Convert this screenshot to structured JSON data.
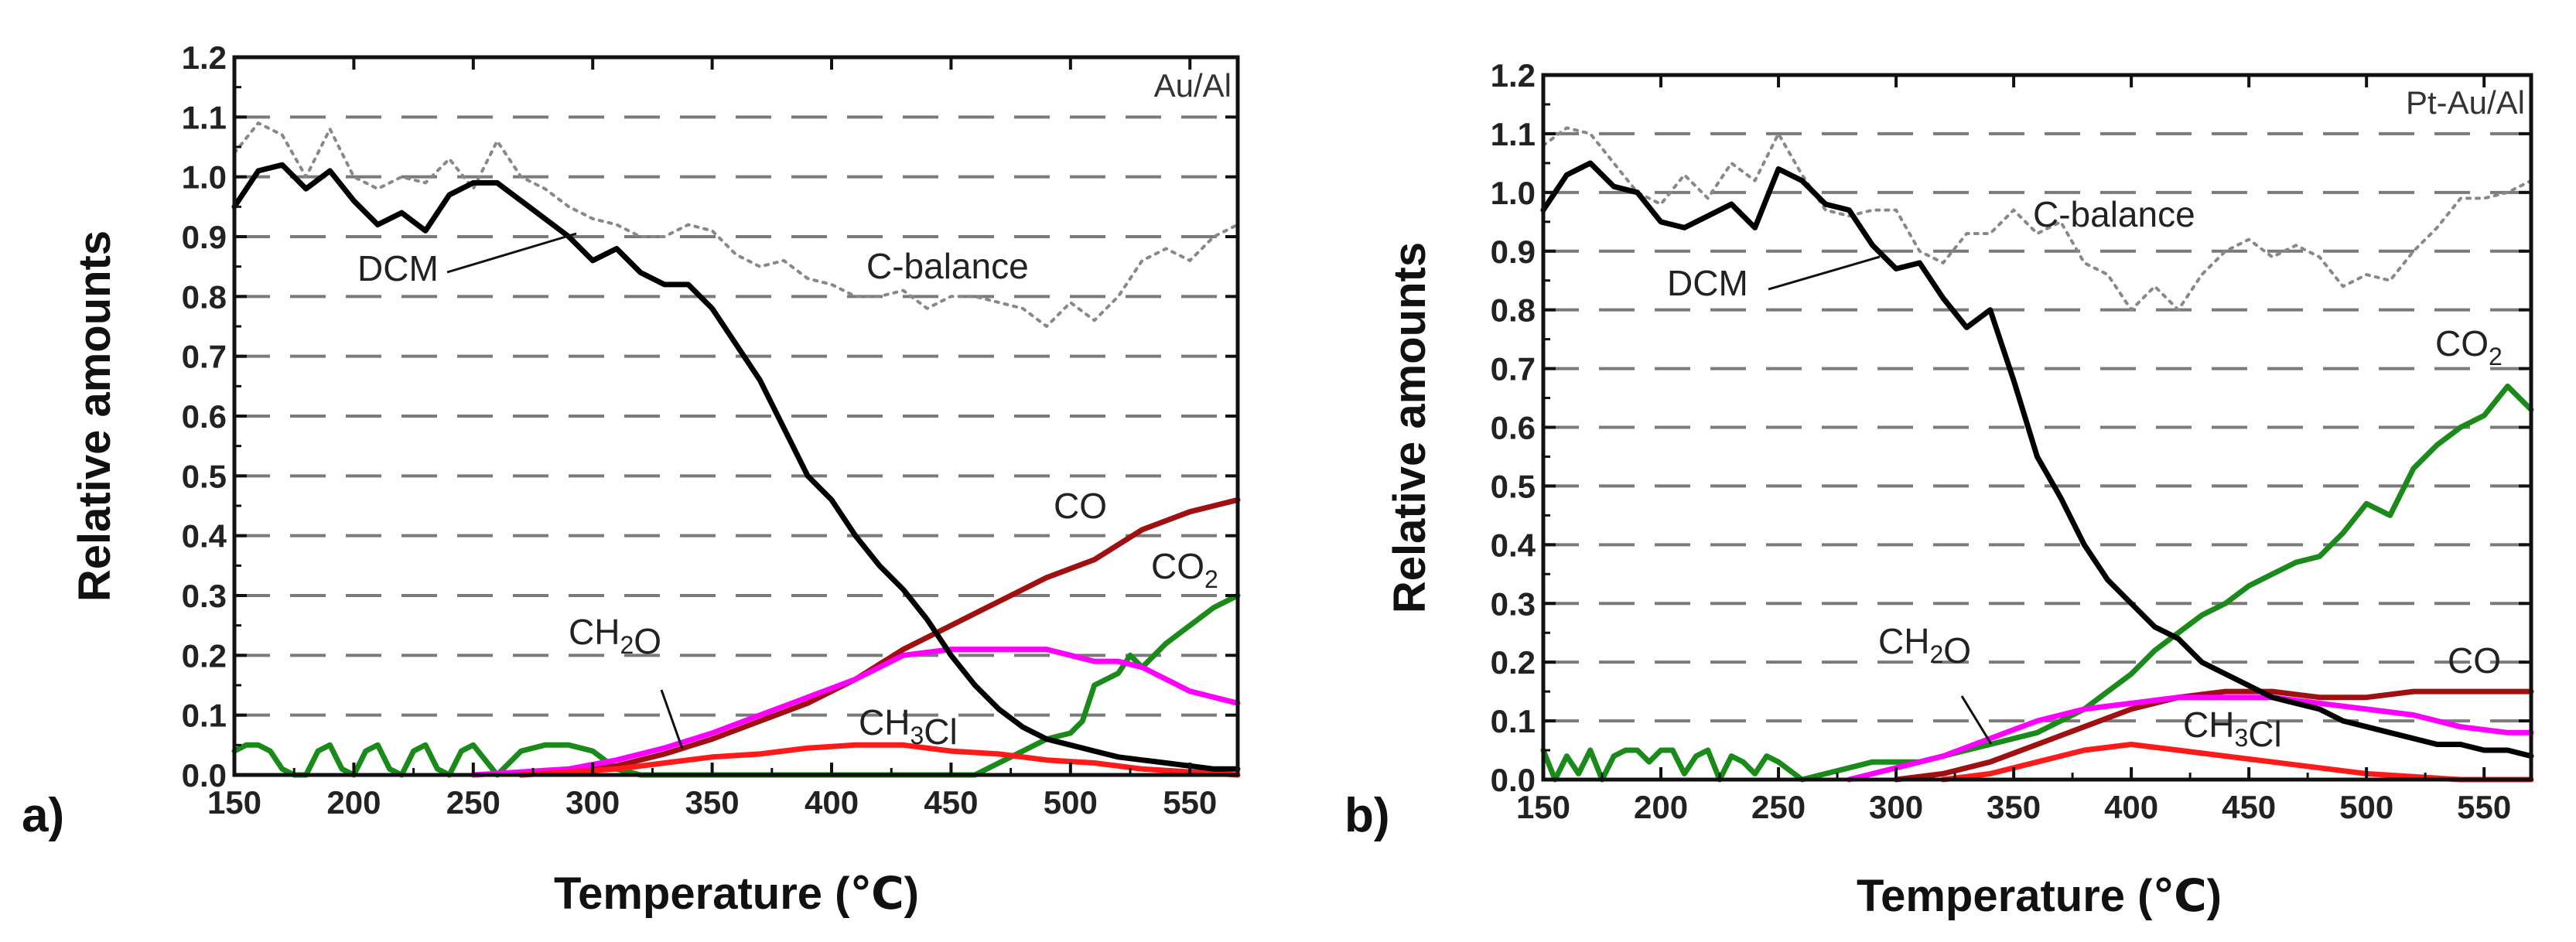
{
  "chart_data": [
    {
      "panel_label": "a)",
      "type": "line",
      "title": "Au/Al",
      "xlabel": "Temperature (℃)",
      "ylabel": "Relative amounts",
      "xlim": [
        150,
        570
      ],
      "ylim": [
        0,
        1.2
      ],
      "xticks": [
        "150",
        "200",
        "250",
        "300",
        "350",
        "400",
        "450",
        "500",
        "550"
      ],
      "yticks": [
        "0.0",
        "0.1",
        "0.2",
        "0.3",
        "0.4",
        "0.5",
        "0.6",
        "0.7",
        "0.8",
        "0.9",
        "1.0",
        "1.1",
        "1.2"
      ],
      "grid": "horizontal dashed",
      "series": [
        {
          "name": "C-balance",
          "color": "#888888",
          "style": "dotted",
          "x": [
            150,
            160,
            170,
            180,
            190,
            200,
            210,
            220,
            230,
            240,
            250,
            260,
            270,
            280,
            290,
            300,
            310,
            320,
            330,
            340,
            350,
            360,
            370,
            380,
            390,
            400,
            410,
            420,
            430,
            440,
            450,
            460,
            470,
            480,
            490,
            500,
            510,
            520,
            530,
            540,
            550,
            560,
            570
          ],
          "y": [
            1.04,
            1.09,
            1.07,
            1.0,
            1.08,
            1.0,
            0.98,
            1.0,
            0.99,
            1.03,
            0.98,
            1.06,
            1.0,
            0.98,
            0.95,
            0.93,
            0.92,
            0.9,
            0.9,
            0.92,
            0.91,
            0.87,
            0.85,
            0.86,
            0.83,
            0.82,
            0.8,
            0.8,
            0.81,
            0.78,
            0.8,
            0.8,
            0.79,
            0.78,
            0.75,
            0.79,
            0.76,
            0.8,
            0.86,
            0.88,
            0.86,
            0.9,
            0.92
          ]
        },
        {
          "name": "DCM",
          "color": "#000000",
          "style": "solid",
          "x": [
            150,
            160,
            170,
            180,
            190,
            200,
            210,
            220,
            230,
            240,
            250,
            260,
            270,
            280,
            290,
            300,
            310,
            320,
            330,
            340,
            350,
            360,
            370,
            380,
            390,
            400,
            410,
            420,
            430,
            440,
            450,
            460,
            470,
            480,
            490,
            500,
            510,
            520,
            530,
            540,
            550,
            560,
            570
          ],
          "y": [
            0.95,
            1.01,
            1.02,
            0.98,
            1.01,
            0.96,
            0.92,
            0.94,
            0.91,
            0.97,
            0.99,
            0.99,
            0.96,
            0.93,
            0.9,
            0.86,
            0.88,
            0.84,
            0.82,
            0.82,
            0.78,
            0.72,
            0.66,
            0.58,
            0.5,
            0.46,
            0.4,
            0.35,
            0.31,
            0.26,
            0.2,
            0.15,
            0.11,
            0.08,
            0.06,
            0.05,
            0.04,
            0.03,
            0.025,
            0.02,
            0.015,
            0.01,
            0.01
          ]
        },
        {
          "name": "CO",
          "color": "#a01010",
          "style": "solid",
          "x": [
            270,
            290,
            310,
            330,
            350,
            370,
            390,
            410,
            430,
            450,
            470,
            490,
            510,
            530,
            550,
            560,
            570
          ],
          "y": [
            0.0,
            0.005,
            0.015,
            0.035,
            0.06,
            0.09,
            0.12,
            0.16,
            0.21,
            0.25,
            0.29,
            0.33,
            0.36,
            0.41,
            0.44,
            0.45,
            0.46
          ]
        },
        {
          "name": "CO2",
          "color": "#1a8a1a",
          "style": "solid",
          "x": [
            150,
            155,
            160,
            165,
            170,
            175,
            180,
            185,
            190,
            195,
            200,
            205,
            210,
            215,
            220,
            225,
            230,
            235,
            240,
            245,
            250,
            260,
            270,
            280,
            290,
            300,
            310,
            320,
            460,
            470,
            480,
            490,
            500,
            505,
            510,
            520,
            525,
            530,
            540,
            550,
            560,
            570
          ],
          "y": [
            0.04,
            0.05,
            0.05,
            0.04,
            0.01,
            0.0,
            0.0,
            0.04,
            0.05,
            0.01,
            0.0,
            0.04,
            0.05,
            0.01,
            0.0,
            0.04,
            0.05,
            0.01,
            0.0,
            0.04,
            0.05,
            0.0,
            0.04,
            0.05,
            0.05,
            0.04,
            0.01,
            0.0,
            0.0,
            0.02,
            0.04,
            0.06,
            0.07,
            0.09,
            0.15,
            0.17,
            0.2,
            0.18,
            0.22,
            0.25,
            0.28,
            0.3
          ]
        },
        {
          "name": "CH2O",
          "color": "#ff00ff",
          "style": "solid",
          "x": [
            250,
            270,
            290,
            310,
            330,
            350,
            370,
            390,
            410,
            430,
            450,
            470,
            490,
            500,
            510,
            520,
            530,
            540,
            550,
            560,
            570
          ],
          "y": [
            0.0,
            0.005,
            0.01,
            0.025,
            0.045,
            0.07,
            0.1,
            0.13,
            0.16,
            0.2,
            0.21,
            0.21,
            0.21,
            0.2,
            0.19,
            0.19,
            0.18,
            0.16,
            0.14,
            0.13,
            0.12
          ]
        },
        {
          "name": "CH3Cl",
          "color": "#ff1a1a",
          "style": "solid",
          "x": [
            270,
            290,
            310,
            330,
            350,
            370,
            390,
            410,
            430,
            450,
            470,
            490,
            510,
            530,
            550,
            570
          ],
          "y": [
            0.0,
            0.005,
            0.01,
            0.02,
            0.03,
            0.035,
            0.045,
            0.05,
            0.05,
            0.04,
            0.035,
            0.025,
            0.02,
            0.01,
            0.005,
            0.0
          ]
        }
      ],
      "annotations": [
        {
          "text_parts": [
            {
              "t": "C-balance"
            }
          ],
          "color": "#333333"
        },
        {
          "text_parts": [
            {
              "t": "DCM"
            }
          ],
          "color": "#222222"
        },
        {
          "text_parts": [
            {
              "t": "CO"
            }
          ],
          "color": "#222222"
        },
        {
          "text_parts": [
            {
              "t": "CO"
            },
            {
              "t": "2",
              "sub": true
            }
          ],
          "color": "#222222"
        },
        {
          "text_parts": [
            {
              "t": "CH"
            },
            {
              "t": "2",
              "sub": true
            },
            {
              "t": "O"
            }
          ],
          "color": "#222222"
        },
        {
          "text_parts": [
            {
              "t": "CH"
            },
            {
              "t": "3",
              "sub": true
            },
            {
              "t": "Cl"
            }
          ],
          "color": "#222222"
        }
      ]
    },
    {
      "panel_label": "b)",
      "type": "line",
      "title": "Pt-Au/Al",
      "xlabel": "Temperature (℃)",
      "ylabel": "Relative amounts",
      "xlim": [
        150,
        570
      ],
      "ylim": [
        0,
        1.2
      ],
      "xticks": [
        "150",
        "200",
        "250",
        "300",
        "350",
        "400",
        "450",
        "500",
        "550"
      ],
      "yticks": [
        "0.0",
        "0.1",
        "0.2",
        "0.3",
        "0.4",
        "0.5",
        "0.6",
        "0.7",
        "0.8",
        "0.9",
        "1.0",
        "1.1",
        "1.2"
      ],
      "grid": "horizontal dashed",
      "series": [
        {
          "name": "C-balance",
          "color": "#888888",
          "style": "dotted",
          "x": [
            150,
            160,
            170,
            180,
            190,
            200,
            210,
            220,
            230,
            240,
            250,
            260,
            270,
            280,
            290,
            300,
            310,
            320,
            330,
            340,
            350,
            360,
            370,
            380,
            390,
            400,
            410,
            420,
            430,
            440,
            450,
            460,
            470,
            480,
            490,
            500,
            510,
            520,
            530,
            540,
            550,
            560,
            570
          ],
          "y": [
            1.08,
            1.11,
            1.1,
            1.05,
            1.0,
            0.98,
            1.03,
            0.99,
            1.05,
            1.02,
            1.1,
            1.03,
            0.97,
            0.96,
            0.97,
            0.97,
            0.9,
            0.88,
            0.93,
            0.93,
            0.97,
            0.93,
            0.95,
            0.88,
            0.86,
            0.8,
            0.84,
            0.8,
            0.86,
            0.9,
            0.92,
            0.89,
            0.91,
            0.89,
            0.84,
            0.86,
            0.85,
            0.9,
            0.94,
            0.99,
            0.99,
            1.0,
            1.02
          ]
        },
        {
          "name": "DCM",
          "color": "#000000",
          "style": "solid",
          "x": [
            150,
            160,
            170,
            180,
            190,
            200,
            210,
            220,
            230,
            240,
            250,
            260,
            270,
            280,
            290,
            300,
            310,
            320,
            330,
            340,
            350,
            360,
            370,
            380,
            390,
            400,
            410,
            420,
            430,
            440,
            450,
            460,
            470,
            480,
            490,
            500,
            510,
            520,
            530,
            540,
            550,
            560,
            570
          ],
          "y": [
            0.97,
            1.03,
            1.05,
            1.01,
            1.0,
            0.95,
            0.94,
            0.96,
            0.98,
            0.94,
            1.04,
            1.02,
            0.98,
            0.97,
            0.91,
            0.87,
            0.88,
            0.82,
            0.77,
            0.8,
            0.68,
            0.55,
            0.48,
            0.4,
            0.34,
            0.3,
            0.26,
            0.24,
            0.2,
            0.18,
            0.16,
            0.14,
            0.13,
            0.12,
            0.1,
            0.09,
            0.08,
            0.07,
            0.06,
            0.06,
            0.05,
            0.05,
            0.04
          ]
        },
        {
          "name": "CO2",
          "color": "#1a8a1a",
          "style": "solid",
          "x": [
            150,
            155,
            160,
            165,
            170,
            175,
            180,
            185,
            190,
            195,
            200,
            205,
            210,
            215,
            220,
            225,
            230,
            235,
            240,
            245,
            250,
            260,
            270,
            280,
            290,
            300,
            310,
            320,
            330,
            340,
            350,
            360,
            370,
            380,
            390,
            400,
            410,
            420,
            430,
            440,
            450,
            460,
            470,
            480,
            490,
            500,
            510,
            520,
            530,
            540,
            550,
            560,
            570
          ],
          "y": [
            0.05,
            0.0,
            0.04,
            0.01,
            0.05,
            0.0,
            0.04,
            0.05,
            0.05,
            0.03,
            0.05,
            0.05,
            0.01,
            0.04,
            0.05,
            0.0,
            0.04,
            0.03,
            0.01,
            0.04,
            0.03,
            0.0,
            0.01,
            0.02,
            0.03,
            0.03,
            0.03,
            0.04,
            0.05,
            0.06,
            0.07,
            0.08,
            0.1,
            0.12,
            0.15,
            0.18,
            0.22,
            0.25,
            0.28,
            0.3,
            0.33,
            0.35,
            0.37,
            0.38,
            0.42,
            0.47,
            0.45,
            0.53,
            0.57,
            0.6,
            0.62,
            0.67,
            0.63
          ]
        },
        {
          "name": "CO",
          "color": "#a01010",
          "style": "solid",
          "x": [
            300,
            320,
            340,
            360,
            380,
            400,
            420,
            440,
            460,
            480,
            500,
            520,
            540,
            560,
            570
          ],
          "y": [
            0.0,
            0.01,
            0.03,
            0.06,
            0.09,
            0.12,
            0.14,
            0.15,
            0.15,
            0.14,
            0.14,
            0.15,
            0.15,
            0.15,
            0.15
          ]
        },
        {
          "name": "CH2O",
          "color": "#ff00ff",
          "style": "solid",
          "x": [
            280,
            300,
            320,
            340,
            360,
            380,
            400,
            420,
            440,
            460,
            480,
            500,
            520,
            540,
            560,
            570
          ],
          "y": [
            0.0,
            0.02,
            0.04,
            0.07,
            0.1,
            0.12,
            0.13,
            0.14,
            0.14,
            0.14,
            0.13,
            0.12,
            0.11,
            0.09,
            0.08,
            0.08
          ]
        },
        {
          "name": "CH3Cl",
          "color": "#ff1a1a",
          "style": "solid",
          "x": [
            320,
            340,
            360,
            380,
            400,
            420,
            440,
            460,
            480,
            500,
            520,
            540,
            560,
            570
          ],
          "y": [
            0.0,
            0.01,
            0.03,
            0.05,
            0.06,
            0.05,
            0.04,
            0.03,
            0.02,
            0.01,
            0.005,
            0.0,
            0.0,
            0.0
          ]
        }
      ],
      "annotations": [
        {
          "text_parts": [
            {
              "t": "C-balance"
            }
          ],
          "color": "#333333"
        },
        {
          "text_parts": [
            {
              "t": "DCM"
            }
          ],
          "color": "#222222"
        },
        {
          "text_parts": [
            {
              "t": "CO"
            },
            {
              "t": "2",
              "sub": true
            }
          ],
          "color": "#222222"
        },
        {
          "text_parts": [
            {
              "t": "CO"
            }
          ],
          "color": "#222222"
        },
        {
          "text_parts": [
            {
              "t": "CH"
            },
            {
              "t": "2",
              "sub": true
            },
            {
              "t": "O"
            }
          ],
          "color": "#222222"
        },
        {
          "text_parts": [
            {
              "t": "CH"
            },
            {
              "t": "3",
              "sub": true
            },
            {
              "t": "Cl"
            }
          ],
          "color": "#222222"
        }
      ]
    }
  ]
}
